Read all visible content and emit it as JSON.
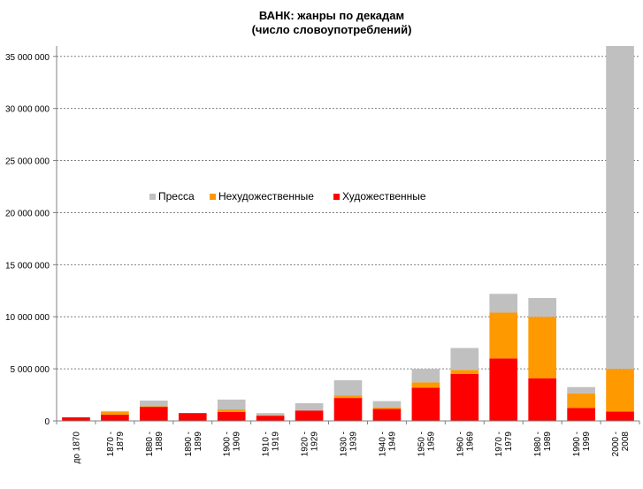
{
  "chart_data": {
    "type": "bar",
    "stacked": true,
    "title": [
      "ВАНК:  жанры по декадам",
      "(число словоупотреблений)"
    ],
    "xlabel": "",
    "ylabel": "",
    "ylim": [
      0,
      36000000
    ],
    "y_ticks": [
      0,
      5000000,
      10000000,
      15000000,
      20000000,
      25000000,
      30000000,
      35000000
    ],
    "y_tick_labels": [
      "0",
      "5 000 000",
      "10 000 000",
      "15 000 000",
      "20 000 000",
      "25 000 000",
      "30 000 000",
      "35 000 000"
    ],
    "grid": "horizontal-dashed",
    "legend_position": "middle-left",
    "categories": [
      [
        "до 1870"
      ],
      [
        "1870 -",
        "1879"
      ],
      [
        "1880 -",
        "1889"
      ],
      [
        "1890 -",
        "1899"
      ],
      [
        "1900 -",
        "1909"
      ],
      [
        "1910 -",
        "1919"
      ],
      [
        "1920 -",
        "1929"
      ],
      [
        "1930 -",
        "1939"
      ],
      [
        "1940 -",
        "1949"
      ],
      [
        "1950 -",
        "1959"
      ],
      [
        "1960 -",
        "1969"
      ],
      [
        "1970 -",
        "1979"
      ],
      [
        "1980 -",
        "1989"
      ],
      [
        "1990 -",
        "1999"
      ],
      [
        "2000 -",
        "2008"
      ]
    ],
    "series": [
      {
        "name": "Художественные",
        "color": "#ff0000",
        "values": [
          350000,
          600000,
          1350000,
          750000,
          850000,
          500000,
          1000000,
          2200000,
          1150000,
          3200000,
          4500000,
          6000000,
          4100000,
          1250000,
          900000
        ]
      },
      {
        "name": "Нехудожественные",
        "color": "#ff9900",
        "values": [
          0,
          250000,
          50000,
          0,
          250000,
          50000,
          0,
          250000,
          150000,
          500000,
          400000,
          4400000,
          5900000,
          1400000,
          4100000
        ]
      },
      {
        "name": "Пресса",
        "color": "#c0c0c0",
        "values": [
          0,
          100000,
          550000,
          0,
          950000,
          200000,
          700000,
          1450000,
          600000,
          1300000,
          2100000,
          1800000,
          1800000,
          600000,
          31000000
        ]
      }
    ],
    "legend_order": [
      "Пресса",
      "Нехудожественные",
      "Художественные"
    ]
  }
}
